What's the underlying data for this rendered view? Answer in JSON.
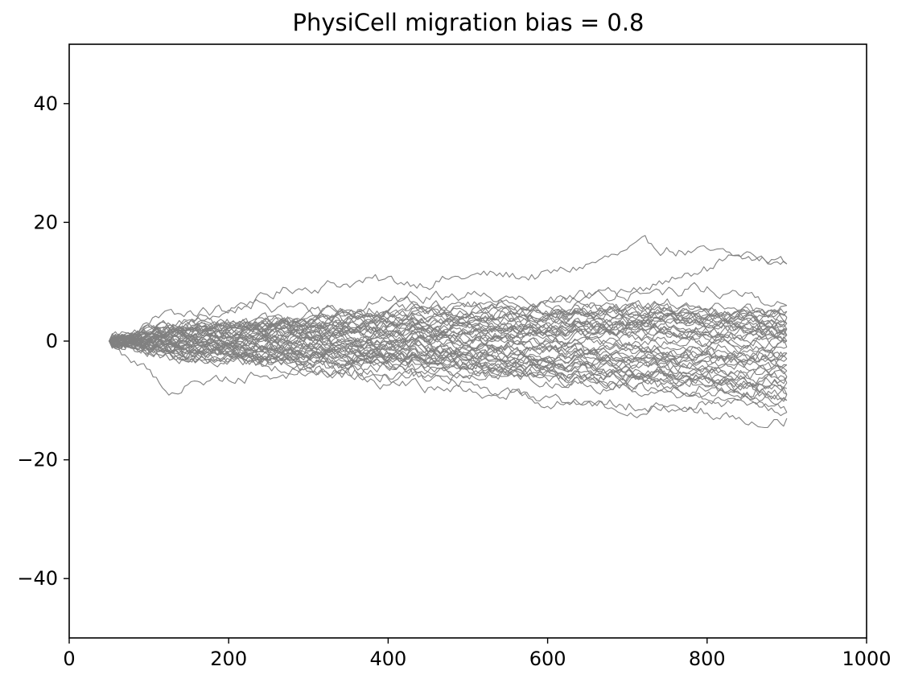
{
  "chart_data": {
    "type": "line",
    "title": "PhysiCell migration bias = 0.8",
    "xlabel": "",
    "ylabel": "",
    "xlim": [
      0,
      1000
    ],
    "ylim": [
      -50,
      50
    ],
    "x_ticks": [
      "0",
      "200",
      "400",
      "600",
      "800",
      "1000"
    ],
    "y_ticks": [
      "−40",
      "−20",
      "0",
      "20",
      "40"
    ],
    "grid": false,
    "legend": "none",
    "line_color": "#808080",
    "n_series": 50,
    "x_start": 50,
    "x_end": 900,
    "start_y": 0,
    "series": [
      {
        "x": [
          50,
          120,
          200,
          280,
          360,
          440,
          520,
          600,
          680,
          730,
          780,
          840,
          900
        ],
        "y": [
          0,
          2,
          5,
          9,
          10,
          10,
          11,
          11,
          14,
          16,
          15,
          14,
          13
        ]
      },
      {
        "x": [
          50,
          130,
          210,
          300,
          400,
          500,
          600,
          700,
          760,
          800,
          850,
          900
        ],
        "y": [
          0,
          1,
          2,
          4,
          7,
          8,
          7,
          8,
          10,
          12,
          14,
          13
        ]
      },
      {
        "x": [
          50,
          120,
          180,
          250,
          320,
          400,
          500,
          600,
          700,
          800,
          900
        ],
        "y": [
          0,
          4,
          5,
          6,
          5,
          6,
          6,
          7,
          8,
          9,
          6
        ]
      },
      {
        "x": [
          50,
          125,
          200,
          300,
          400,
          500,
          600,
          700,
          800,
          900
        ],
        "y": [
          0,
          -8,
          -6,
          -5,
          -6,
          -7,
          -10,
          -11,
          -12,
          -13
        ]
      },
      {
        "x": [
          50,
          150,
          250,
          350,
          450,
          550,
          650,
          750,
          850,
          900
        ],
        "y": [
          0,
          -3,
          -4,
          -6,
          -8,
          -9,
          -10,
          -11,
          -10,
          -12
        ]
      },
      {
        "x": [
          50,
          150,
          250,
          350,
          450,
          550,
          650,
          750,
          850,
          900
        ],
        "y": [
          0,
          3,
          2,
          4,
          5,
          6,
          5,
          6,
          5,
          5
        ]
      },
      {
        "x": [
          50,
          150,
          250,
          350,
          450,
          550,
          650,
          750,
          850,
          900
        ],
        "y": [
          0,
          -1,
          1,
          2,
          0,
          2,
          3,
          1,
          3,
          2
        ]
      },
      {
        "x": [
          50,
          150,
          250,
          350,
          450,
          550,
          650,
          750,
          850,
          900
        ],
        "y": [
          0,
          1,
          -1,
          -2,
          -1,
          -3,
          -2,
          -4,
          -3,
          -2
        ]
      },
      {
        "x": [
          50,
          150,
          250,
          350,
          450,
          550,
          650,
          750,
          850,
          900
        ],
        "y": [
          0,
          -2,
          -3,
          -5,
          -4,
          -6,
          -7,
          -8,
          -9,
          -9
        ]
      },
      {
        "x": [
          50,
          150,
          250,
          350,
          450,
          550,
          650,
          750,
          850,
          900
        ],
        "y": [
          0,
          2,
          3,
          1,
          3,
          4,
          2,
          4,
          3,
          1
        ]
      },
      {
        "x": [
          50,
          150,
          250,
          350,
          450,
          550,
          650,
          750,
          850,
          900
        ],
        "y": [
          0,
          -1,
          -2,
          -1,
          -3,
          -2,
          -5,
          -6,
          -7,
          -6
        ]
      },
      {
        "x": [
          50,
          150,
          250,
          350,
          450,
          550,
          650,
          750,
          850,
          900
        ],
        "y": [
          0,
          0,
          2,
          3,
          4,
          3,
          5,
          4,
          6,
          4
        ]
      },
      {
        "x": [
          50,
          150,
          250,
          350,
          450,
          550,
          650,
          750,
          850,
          900
        ],
        "y": [
          0,
          1,
          0,
          -1,
          0,
          -1,
          0,
          -2,
          -1,
          0
        ]
      },
      {
        "x": [
          50,
          150,
          250,
          350,
          450,
          550,
          650,
          750,
          850,
          900
        ],
        "y": [
          0,
          -2,
          -1,
          -3,
          -2,
          -4,
          -3,
          -5,
          -4,
          -3
        ]
      },
      {
        "x": [
          50,
          150,
          250,
          350,
          450,
          550,
          650,
          750,
          850,
          900
        ],
        "y": [
          0,
          2,
          1,
          3,
          2,
          4,
          3,
          5,
          2,
          3
        ]
      },
      {
        "x": [
          50,
          150,
          250,
          350,
          450,
          550,
          650,
          750,
          850,
          900
        ],
        "y": [
          0,
          -1,
          -3,
          -4,
          -5,
          -4,
          -6,
          -8,
          -7,
          -9
        ]
      },
      {
        "x": [
          50,
          150,
          250,
          350,
          450,
          550,
          650,
          750,
          850,
          900
        ],
        "y": [
          0,
          1,
          3,
          2,
          1,
          2,
          1,
          3,
          1,
          2
        ]
      },
      {
        "x": [
          50,
          150,
          250,
          350,
          450,
          550,
          650,
          750,
          850,
          900
        ],
        "y": [
          0,
          -3,
          -2,
          -4,
          -3,
          -5,
          -4,
          -6,
          -5,
          -5
        ]
      },
      {
        "x": [
          50,
          150,
          250,
          350,
          450,
          550,
          650,
          750,
          850,
          900
        ],
        "y": [
          0,
          2,
          4,
          3,
          5,
          4,
          6,
          5,
          4,
          3
        ]
      },
      {
        "x": [
          50,
          150,
          250,
          350,
          450,
          550,
          650,
          750,
          850,
          900
        ],
        "y": [
          0,
          0,
          -1,
          1,
          -1,
          0,
          -2,
          -1,
          -3,
          -1
        ]
      },
      {
        "x": [
          50,
          150,
          250,
          350,
          450,
          550,
          650,
          750,
          850,
          900
        ],
        "y": [
          0,
          -2,
          -4,
          -3,
          -5,
          -6,
          -5,
          -7,
          -9,
          -10
        ]
      },
      {
        "x": [
          50,
          150,
          250,
          350,
          450,
          550,
          650,
          750,
          850,
          900
        ],
        "y": [
          0,
          1,
          2,
          4,
          3,
          5,
          4,
          3,
          4,
          6
        ]
      },
      {
        "x": [
          50,
          150,
          250,
          350,
          450,
          550,
          650,
          750,
          850,
          900
        ],
        "y": [
          0,
          -1,
          0,
          -2,
          -1,
          -2,
          -1,
          0,
          -1,
          -2
        ]
      },
      {
        "x": [
          50,
          150,
          250,
          350,
          450,
          550,
          650,
          750,
          850,
          900
        ],
        "y": [
          0,
          2,
          1,
          0,
          2,
          1,
          3,
          2,
          1,
          1
        ]
      },
      {
        "x": [
          50,
          150,
          250,
          350,
          450,
          550,
          650,
          750,
          850,
          900
        ],
        "y": [
          0,
          -2,
          -3,
          -2,
          -4,
          -3,
          -5,
          -6,
          -8,
          -7
        ]
      },
      {
        "x": [
          50,
          150,
          250,
          350,
          450,
          550,
          650,
          750,
          850,
          900
        ],
        "y": [
          0,
          1,
          3,
          5,
          4,
          6,
          5,
          4,
          3,
          2
        ]
      },
      {
        "x": [
          50,
          150,
          250,
          350,
          450,
          550,
          650,
          750,
          850,
          900
        ],
        "y": [
          0,
          -1,
          -2,
          -3,
          -2,
          -4,
          -6,
          -5,
          -7,
          -6
        ]
      },
      {
        "x": [
          50,
          150,
          250,
          350,
          450,
          550,
          650,
          750,
          850,
          900
        ],
        "y": [
          0,
          2,
          0,
          1,
          3,
          2,
          1,
          2,
          0,
          -1
        ]
      },
      {
        "x": [
          50,
          150,
          250,
          350,
          450,
          550,
          650,
          750,
          850,
          900
        ],
        "y": [
          0,
          -1,
          1,
          0,
          2,
          1,
          3,
          4,
          3,
          4
        ]
      },
      {
        "x": [
          50,
          150,
          250,
          350,
          450,
          550,
          650,
          750,
          850,
          900
        ],
        "y": [
          0,
          -3,
          -4,
          -5,
          -6,
          -5,
          -7,
          -6,
          -8,
          -9
        ]
      },
      {
        "x": [
          50,
          150,
          250,
          350,
          450,
          550,
          650,
          750,
          850,
          900
        ],
        "y": [
          0,
          1,
          -1,
          -2,
          -3,
          -2,
          -4,
          -3,
          -5,
          -4
        ]
      },
      {
        "x": [
          50,
          150,
          250,
          350,
          450,
          550,
          650,
          750,
          850,
          900
        ],
        "y": [
          0,
          2,
          3,
          4,
          2,
          3,
          4,
          6,
          5,
          3
        ]
      },
      {
        "x": [
          50,
          150,
          250,
          350,
          450,
          550,
          650,
          750,
          850,
          900
        ],
        "y": [
          0,
          0,
          1,
          -1,
          0,
          1,
          -1,
          0,
          2,
          1
        ]
      },
      {
        "x": [
          50,
          150,
          250,
          350,
          450,
          550,
          650,
          750,
          850,
          900
        ],
        "y": [
          0,
          -2,
          0,
          -1,
          -3,
          -4,
          -3,
          -2,
          -4,
          -5
        ]
      },
      {
        "x": [
          50,
          150,
          250,
          350,
          450,
          550,
          650,
          750,
          850,
          900
        ],
        "y": [
          0,
          3,
          2,
          4,
          5,
          4,
          3,
          2,
          3,
          0
        ]
      },
      {
        "x": [
          50,
          150,
          250,
          350,
          450,
          550,
          650,
          750,
          850,
          900
        ],
        "y": [
          0,
          -1,
          -2,
          0,
          -1,
          -3,
          -2,
          -4,
          -6,
          -7
        ]
      },
      {
        "x": [
          50,
          150,
          250,
          350,
          450,
          550,
          650,
          750,
          850,
          900
        ],
        "y": [
          0,
          1,
          2,
          1,
          3,
          2,
          4,
          3,
          2,
          4
        ]
      },
      {
        "x": [
          50,
          150,
          250,
          350,
          450,
          550,
          650,
          750,
          850,
          900
        ],
        "y": [
          0,
          -2,
          -1,
          -2,
          -3,
          -5,
          -4,
          -6,
          -7,
          -8
        ]
      },
      {
        "x": [
          50,
          150,
          250,
          350,
          450,
          550,
          650,
          750,
          850,
          900
        ],
        "y": [
          0,
          0,
          2,
          1,
          0,
          -1,
          1,
          0,
          -1,
          -3
        ]
      },
      {
        "x": [
          50,
          150,
          250,
          350,
          450,
          550,
          650,
          750,
          850,
          900
        ],
        "y": [
          0,
          2,
          1,
          3,
          4,
          5,
          6,
          4,
          5,
          2
        ]
      },
      {
        "x": [
          50,
          150,
          250,
          350,
          450,
          550,
          650,
          750,
          850,
          900
        ],
        "y": [
          0,
          -1,
          -3,
          -2,
          -4,
          -5,
          -6,
          -7,
          -8,
          -10
        ]
      },
      {
        "x": [
          50,
          150,
          250,
          350,
          450,
          550,
          650,
          750,
          850,
          900
        ],
        "y": [
          0,
          1,
          0,
          2,
          1,
          0,
          2,
          1,
          0,
          2
        ]
      },
      {
        "x": [
          50,
          150,
          250,
          350,
          450,
          550,
          650,
          750,
          850,
          900
        ],
        "y": [
          0,
          -2,
          -3,
          -1,
          -2,
          -1,
          -3,
          -2,
          -3,
          -4
        ]
      },
      {
        "x": [
          50,
          150,
          250,
          350,
          450,
          550,
          650,
          750,
          850,
          900
        ],
        "y": [
          0,
          2,
          4,
          2,
          3,
          2,
          1,
          2,
          1,
          3
        ]
      },
      {
        "x": [
          50,
          150,
          250,
          350,
          450,
          550,
          650,
          750,
          850,
          900
        ],
        "y": [
          0,
          -1,
          -2,
          -4,
          -3,
          -5,
          -7,
          -9,
          -11,
          -12
        ]
      },
      {
        "x": [
          50,
          150,
          250,
          350,
          450,
          550,
          650,
          750,
          850,
          900
        ],
        "y": [
          0,
          1,
          3,
          4,
          6,
          5,
          4,
          5,
          3,
          1
        ]
      },
      {
        "x": [
          50,
          150,
          250,
          350,
          450,
          550,
          650,
          750,
          850,
          900
        ],
        "y": [
          0,
          -1,
          0,
          -1,
          1,
          0,
          -2,
          -3,
          -2,
          0
        ]
      },
      {
        "x": [
          50,
          150,
          250,
          350,
          450,
          550,
          650,
          750,
          850,
          900
        ],
        "y": [
          0,
          0,
          -2,
          -3,
          -2,
          -3,
          -4,
          -5,
          -4,
          -6
        ]
      },
      {
        "x": [
          50,
          150,
          250,
          350,
          450,
          550,
          650,
          750,
          850,
          900
        ],
        "y": [
          0,
          2,
          1,
          2,
          0,
          1,
          2,
          3,
          4,
          5
        ]
      },
      {
        "x": [
          50,
          150,
          250,
          350,
          450,
          550,
          650,
          750,
          850,
          900
        ],
        "y": [
          0,
          -2,
          -1,
          0,
          -2,
          -1,
          -2,
          -4,
          -3,
          -2
        ]
      }
    ]
  }
}
